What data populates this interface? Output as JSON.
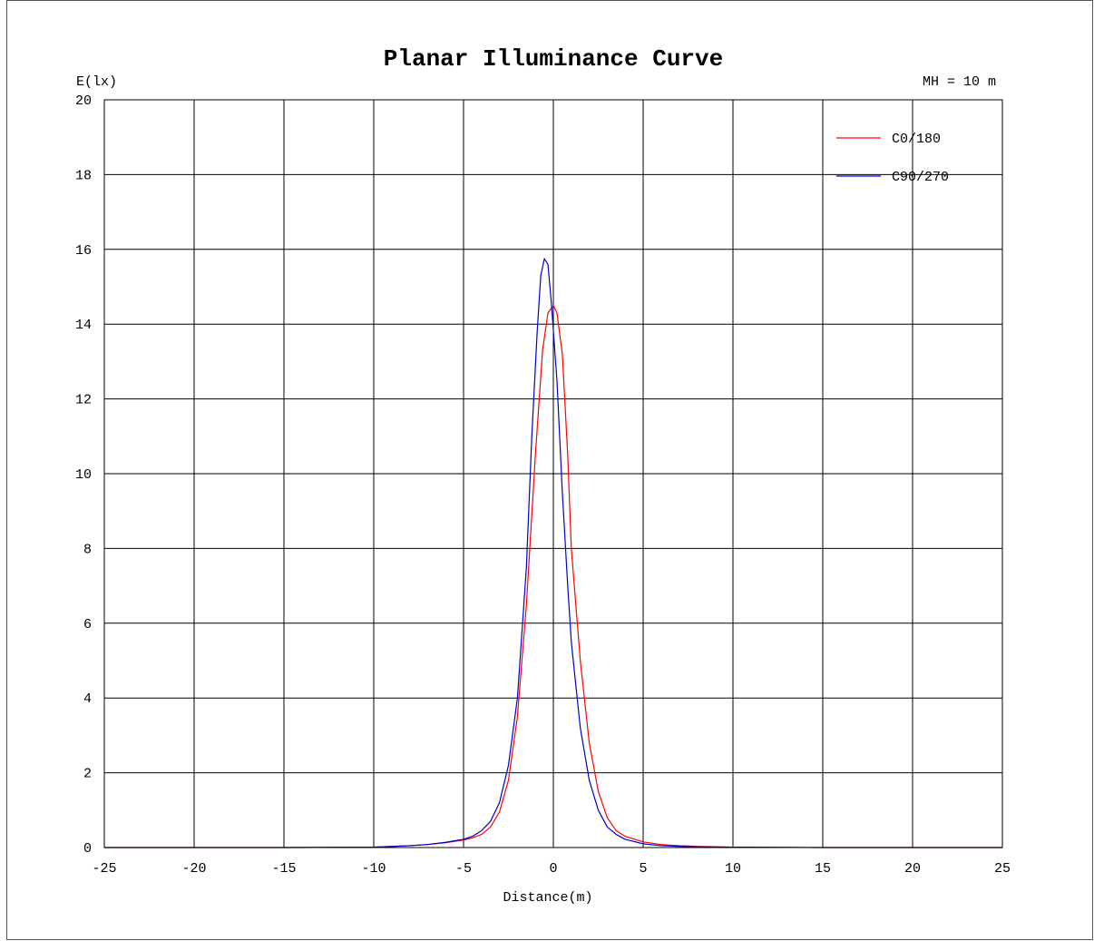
{
  "chart_data": {
    "type": "line",
    "title": "Planar Illuminance Curve",
    "ylabel": "E(lx)",
    "xlabel": "Distance(m)",
    "annotation": "MH = 10 m",
    "xlim": [
      -25,
      25
    ],
    "ylim": [
      0,
      20
    ],
    "xticks": [
      -25,
      -20,
      -15,
      -10,
      -5,
      0,
      5,
      10,
      15,
      20,
      25
    ],
    "yticks": [
      0,
      2,
      4,
      6,
      8,
      10,
      12,
      14,
      16,
      18,
      20
    ],
    "grid": true,
    "legend_position": "top-right",
    "series": [
      {
        "name": "C0/180",
        "color": "#ff0000",
        "points": [
          [
            -25,
            0
          ],
          [
            -15,
            0
          ],
          [
            -10,
            0.01
          ],
          [
            -8,
            0.05
          ],
          [
            -7,
            0.08
          ],
          [
            -6,
            0.13
          ],
          [
            -5,
            0.2
          ],
          [
            -4.5,
            0.26
          ],
          [
            -4,
            0.35
          ],
          [
            -3.5,
            0.55
          ],
          [
            -3,
            0.95
          ],
          [
            -2.5,
            1.8
          ],
          [
            -2,
            3.5
          ],
          [
            -1.5,
            6.5
          ],
          [
            -1,
            10.5
          ],
          [
            -0.6,
            13.3
          ],
          [
            -0.3,
            14.3
          ],
          [
            0,
            14.5
          ],
          [
            0.2,
            14.3
          ],
          [
            0.5,
            13.2
          ],
          [
            0.8,
            10.5
          ],
          [
            1,
            8.0
          ],
          [
            1.5,
            5.0
          ],
          [
            2,
            2.8
          ],
          [
            2.5,
            1.5
          ],
          [
            3,
            0.8
          ],
          [
            3.5,
            0.45
          ],
          [
            4,
            0.3
          ],
          [
            5,
            0.15
          ],
          [
            6,
            0.08
          ],
          [
            7,
            0.05
          ],
          [
            8,
            0.03
          ],
          [
            10,
            0.01
          ],
          [
            15,
            0
          ],
          [
            25,
            0
          ]
        ]
      },
      {
        "name": "C90/270",
        "color": "#0000cc",
        "points": [
          [
            -25,
            0
          ],
          [
            -15,
            0
          ],
          [
            -10,
            0.01
          ],
          [
            -8,
            0.05
          ],
          [
            -7,
            0.08
          ],
          [
            -6,
            0.14
          ],
          [
            -5,
            0.22
          ],
          [
            -4.5,
            0.3
          ],
          [
            -4,
            0.45
          ],
          [
            -3.5,
            0.7
          ],
          [
            -3,
            1.2
          ],
          [
            -2.5,
            2.2
          ],
          [
            -2,
            4.0
          ],
          [
            -1.5,
            7.5
          ],
          [
            -1.2,
            11.0
          ],
          [
            -0.9,
            13.8
          ],
          [
            -0.7,
            15.3
          ],
          [
            -0.5,
            15.75
          ],
          [
            -0.3,
            15.6
          ],
          [
            -0.1,
            14.5
          ],
          [
            0.2,
            12.5
          ],
          [
            0.5,
            9.5
          ],
          [
            0.8,
            7.0
          ],
          [
            1,
            5.5
          ],
          [
            1.5,
            3.2
          ],
          [
            2,
            1.8
          ],
          [
            2.5,
            1.0
          ],
          [
            3,
            0.55
          ],
          [
            3.5,
            0.35
          ],
          [
            4,
            0.22
          ],
          [
            5,
            0.1
          ],
          [
            6,
            0.05
          ],
          [
            7,
            0.03
          ],
          [
            8,
            0.02
          ],
          [
            10,
            0.01
          ],
          [
            15,
            0
          ],
          [
            25,
            0
          ]
        ]
      }
    ]
  }
}
